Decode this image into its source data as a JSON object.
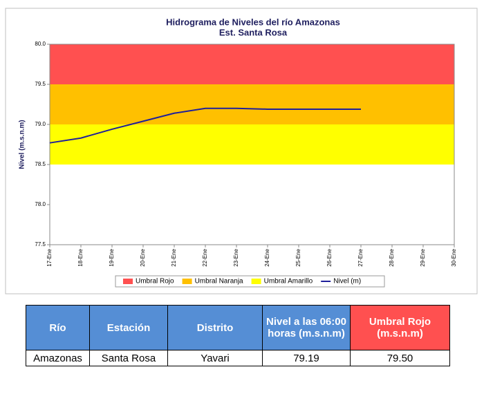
{
  "chart_data": {
    "type": "line",
    "title": "Hidrograma de Niveles del río Amazonas",
    "subtitle": "Est. Santa Rosa",
    "y_label": "Nivel (m.s.n.m)",
    "categories": [
      "17-Ene",
      "18-Ene",
      "19-Ene",
      "20-Ene",
      "21-Ene",
      "22-Ene",
      "23-Ene",
      "24-Ene",
      "25-Ene",
      "26-Ene",
      "27-Ene",
      "28-Ene",
      "29-Ene",
      "30-Ene"
    ],
    "bands": [
      {
        "name": "Umbral Rojo",
        "color": "#ff5050",
        "range": [
          79.5,
          80.0
        ]
      },
      {
        "name": "Umbral Naranja",
        "color": "#ffc000",
        "range": [
          79.0,
          79.5
        ]
      },
      {
        "name": "Umbral Amarillo",
        "color": "#ffff00",
        "range": [
          78.5,
          79.0
        ]
      }
    ],
    "series": [
      {
        "name": "Nivel (m)",
        "color": "#1f1f9a",
        "values": [
          78.77,
          78.83,
          78.94,
          79.04,
          79.14,
          79.2,
          79.2,
          79.19,
          79.19,
          79.19,
          79.19,
          null,
          null,
          null
        ]
      }
    ],
    "ylim": [
      77.5,
      80.0
    ],
    "yticks": [
      {
        "value": 77.5,
        "label": "77.5"
      },
      {
        "value": 78,
        "label": "78.0"
      },
      {
        "value": 78.5,
        "label": "78.5"
      },
      {
        "value": 79,
        "label": "79.0"
      },
      {
        "value": 79.5,
        "label": "79.5"
      },
      {
        "value": 80,
        "label": "80.0"
      }
    ]
  },
  "table": {
    "header": [
      "Río",
      "Estación",
      "Distrito",
      "Nivel a las 06:00 horas (m.s.n.m)",
      "Umbral Rojo (m.s.n.m)"
    ],
    "rows": [
      [
        "Amazonas",
        "Santa Rosa",
        "Yavari",
        "79.19",
        "79.50"
      ]
    ]
  }
}
